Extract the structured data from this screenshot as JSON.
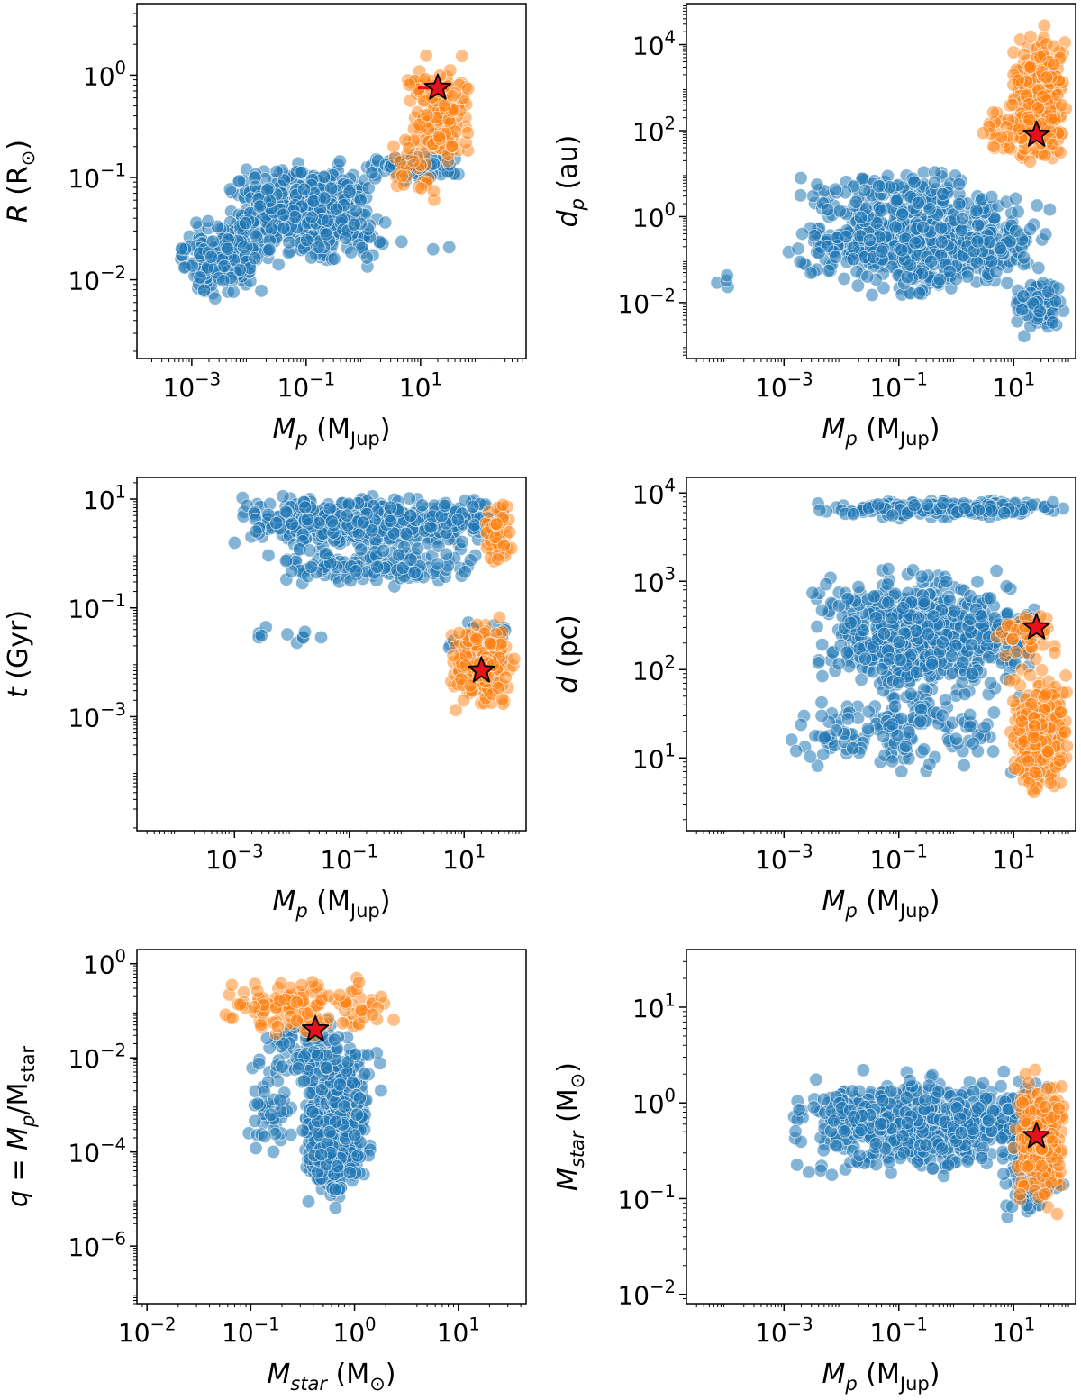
{
  "chart_data": [
    {
      "type": "scatter",
      "id": "p1",
      "xlabel": [
        "M",
        "p",
        " (M",
        "Jup",
        ")"
      ],
      "ylabel": [
        "R",
        "",
        " (R",
        "⊙",
        ")"
      ],
      "xscale": "log",
      "yscale": "log",
      "xlim": [
        0.00011,
        700
      ],
      "ylim": [
        0.0017,
        5
      ],
      "xticks": [
        {
          "v": 0.001,
          "label": "10^-3"
        },
        {
          "v": 0.1,
          "label": "10^-1"
        },
        {
          "v": 10,
          "label": "10^1"
        }
      ],
      "yticks": [
        {
          "v": 0.01,
          "label": "10^-2"
        },
        {
          "v": 0.1,
          "label": "10^-1"
        },
        {
          "v": 1,
          "label": "10^0"
        }
      ],
      "colors": {
        "blue": "#1f77b4",
        "orange": "#ff7f0e",
        "star": "#e8101a"
      },
      "blue_clusters": [
        {
          "x": [
            0.003,
            2
          ],
          "y": [
            0.012,
            0.18
          ],
          "n": 520
        },
        {
          "x": [
            0.0005,
            0.02
          ],
          "y": [
            0.005,
            0.05
          ],
          "n": 180
        },
        {
          "x": [
            1,
            60
          ],
          "y": [
            0.08,
            0.2
          ],
          "n": 90
        },
        {
          "x": [
            0.05,
            50
          ],
          "y": [
            0.01,
            0.05
          ],
          "n": 25
        }
      ],
      "orange_clusters": [
        {
          "x": [
            5,
            80
          ],
          "y": [
            0.08,
            2
          ],
          "n": 160
        },
        {
          "x": [
            2,
            20
          ],
          "y": [
            0.05,
            0.3
          ],
          "n": 25
        }
      ],
      "star": {
        "x": 20,
        "y": 0.75
      }
    },
    {
      "type": "scatter",
      "id": "p2",
      "xlabel": [
        "M",
        "p",
        " (M",
        "Jup",
        ")"
      ],
      "ylabel": [
        "d",
        "p",
        " (au)",
        "",
        ""
      ],
      "xscale": "log",
      "yscale": "log",
      "xlim": [
        2e-05,
        120
      ],
      "ylim": [
        0.0005,
        90000
      ],
      "xticks": [
        {
          "v": 0.001,
          "label": "10^-3"
        },
        {
          "v": 0.1,
          "label": "10^-1"
        },
        {
          "v": 10,
          "label": "10^1"
        }
      ],
      "yticks": [
        {
          "v": 0.01,
          "label": "10^-2"
        },
        {
          "v": 1,
          "label": "10^0"
        },
        {
          "v": 100,
          "label": "10^2"
        },
        {
          "v": 10000,
          "label": "10^4"
        }
      ],
      "colors": {
        "blue": "#1f77b4",
        "orange": "#ff7f0e",
        "star": "#e8101a"
      },
      "blue_clusters": [
        {
          "x": [
            0.001,
            50
          ],
          "y": [
            0.01,
            5
          ],
          "n": 650
        },
        {
          "x": [
            0.001,
            30
          ],
          "y": [
            0.5,
            20
          ],
          "n": 120
        },
        {
          "x": [
            10,
            80
          ],
          "y": [
            0.001,
            0.05
          ],
          "n": 80
        },
        {
          "x": [
            5e-05,
            0.0002
          ],
          "y": [
            0.01,
            0.2
          ],
          "n": 4
        }
      ],
      "orange_clusters": [
        {
          "x": [
            8,
            90
          ],
          "y": [
            5,
            40000
          ],
          "n": 280
        },
        {
          "x": [
            2,
            20
          ],
          "y": [
            20,
            500
          ],
          "n": 25
        }
      ],
      "star": {
        "x": 25,
        "y": 80
      }
    },
    {
      "type": "scatter",
      "id": "p3",
      "xlabel": [
        "M",
        "p",
        " (M",
        "Jup",
        ")"
      ],
      "ylabel": [
        "t",
        "",
        " (Gyr)",
        "",
        ""
      ],
      "xscale": "log",
      "yscale": "log",
      "xlim": [
        2e-05,
        120
      ],
      "ylim": [
        8e-06,
        25
      ],
      "xticks": [
        {
          "v": 0.001,
          "label": "10^-3"
        },
        {
          "v": 0.1,
          "label": "10^-1"
        },
        {
          "v": 10,
          "label": "10^1"
        }
      ],
      "yticks": [
        {
          "v": 0.001,
          "label": "10^-3"
        },
        {
          "v": 0.1,
          "label": "10^-1"
        },
        {
          "v": 10,
          "label": "10^1"
        }
      ],
      "colors": {
        "blue": "#1f77b4",
        "orange": "#ff7f0e",
        "star": "#e8101a"
      },
      "blue_clusters": [
        {
          "x": [
            0.0008,
            60
          ],
          "y": [
            1,
            14
          ],
          "n": 600
        },
        {
          "x": [
            0.003,
            30
          ],
          "y": [
            0.2,
            2
          ],
          "n": 150
        },
        {
          "x": [
            5,
            70
          ],
          "y": [
            0.001,
            0.2
          ],
          "n": 40
        },
        {
          "x": [
            0.001,
            0.05
          ],
          "y": [
            0.02,
            0.05
          ],
          "n": 10
        }
      ],
      "orange_clusters": [
        {
          "x": [
            5,
            80
          ],
          "y": [
            0.0008,
            0.1
          ],
          "n": 180
        },
        {
          "x": [
            20,
            80
          ],
          "y": [
            0.3,
            14
          ],
          "n": 50
        }
      ],
      "star": {
        "x": 20,
        "y": 0.007
      }
    },
    {
      "type": "scatter",
      "id": "p4",
      "xlabel": [
        "M",
        "p",
        " (M",
        "Jup",
        ")"
      ],
      "ylabel": [
        "d",
        "",
        " (pc)",
        "",
        ""
      ],
      "xscale": "log",
      "yscale": "log",
      "xlim": [
        2e-05,
        120
      ],
      "ylim": [
        1.5,
        15000
      ],
      "xticks": [
        {
          "v": 0.001,
          "label": "10^-3"
        },
        {
          "v": 0.1,
          "label": "10^-1"
        },
        {
          "v": 10,
          "label": "10^1"
        }
      ],
      "yticks": [
        {
          "v": 10,
          "label": "10^1"
        },
        {
          "v": 100,
          "label": "10^2"
        },
        {
          "v": 1000,
          "label": "10^3"
        },
        {
          "v": 10000,
          "label": "10^4"
        }
      ],
      "colors": {
        "blue": "#1f77b4",
        "orange": "#ff7f0e",
        "star": "#e8101a"
      },
      "blue_clusters": [
        {
          "x": [
            0.003,
            80
          ],
          "y": [
            5000,
            9000
          ],
          "n": 220
        },
        {
          "x": [
            0.002,
            30
          ],
          "y": [
            30,
            2000
          ],
          "n": 650
        },
        {
          "x": [
            0.001,
            10
          ],
          "y": [
            5,
            80
          ],
          "n": 150
        }
      ],
      "orange_clusters": [
        {
          "x": [
            8,
            90
          ],
          "y": [
            3,
            120
          ],
          "n": 320
        },
        {
          "x": [
            5,
            60
          ],
          "y": [
            100,
            600
          ],
          "n": 40
        }
      ],
      "star": {
        "x": 25,
        "y": 300
      }
    },
    {
      "type": "scatter",
      "id": "p5",
      "xlabel": [
        "M",
        "star",
        " (M",
        "⊙",
        ")"
      ],
      "ylabel": [
        "q = M",
        "p",
        "/M",
        "star",
        ""
      ],
      "xscale": "log",
      "yscale": "log",
      "xlim": [
        0.008,
        45
      ],
      "ylim": [
        6e-08,
        2
      ],
      "xticks": [
        {
          "v": 0.01,
          "label": "10^-2"
        },
        {
          "v": 0.1,
          "label": "10^-1"
        },
        {
          "v": 1,
          "label": "10^0"
        },
        {
          "v": 10,
          "label": "10^1"
        }
      ],
      "yticks": [
        {
          "v": 1e-06,
          "label": "10^-6"
        },
        {
          "v": 0.0001,
          "label": "10^-4"
        },
        {
          "v": 0.01,
          "label": "10^-2"
        },
        {
          "v": 1,
          "label": "10^0"
        }
      ],
      "colors": {
        "blue": "#1f77b4",
        "orange": "#ff7f0e",
        "star": "#e8101a"
      },
      "blue_clusters": [
        {
          "x": [
            0.3,
            1.5
          ],
          "y": [
            5e-06,
            0.02
          ],
          "n": 650
        },
        {
          "x": [
            0.1,
            2
          ],
          "y": [
            0.001,
            0.1
          ],
          "n": 120
        },
        {
          "x": [
            0.08,
            0.3
          ],
          "y": [
            5e-05,
            0.01
          ],
          "n": 40
        }
      ],
      "orange_clusters": [
        {
          "x": [
            0.04,
            2.5
          ],
          "y": [
            0.02,
            0.9
          ],
          "n": 140
        }
      ],
      "star": {
        "x": 0.42,
        "y": 0.04
      }
    },
    {
      "type": "scatter",
      "id": "p6",
      "xlabel": [
        "M",
        "p",
        " (M",
        "Jup",
        ")"
      ],
      "ylabel": [
        "M",
        "star",
        " (M",
        "⊙",
        ")"
      ],
      "xscale": "log",
      "yscale": "log",
      "xlim": [
        2e-05,
        120
      ],
      "ylim": [
        0.008,
        40
      ],
      "xticks": [
        {
          "v": 0.001,
          "label": "10^-3"
        },
        {
          "v": 0.1,
          "label": "10^-1"
        },
        {
          "v": 10,
          "label": "10^1"
        }
      ],
      "yticks": [
        {
          "v": 0.01,
          "label": "10^-2"
        },
        {
          "v": 0.1,
          "label": "10^-1"
        },
        {
          "v": 1,
          "label": "10^0"
        },
        {
          "v": 10,
          "label": "10^1"
        }
      ],
      "colors": {
        "blue": "#1f77b4",
        "orange": "#ff7f0e",
        "star": "#e8101a"
      },
      "blue_clusters": [
        {
          "x": [
            0.001,
            60
          ],
          "y": [
            0.15,
            2.5
          ],
          "n": 700
        },
        {
          "x": [
            5,
            80
          ],
          "y": [
            0.05,
            0.5
          ],
          "n": 60
        }
      ],
      "orange_clusters": [
        {
          "x": [
            10,
            80
          ],
          "y": [
            0.05,
            3
          ],
          "n": 250
        }
      ],
      "star": {
        "x": 25,
        "y": 0.45
      }
    }
  ]
}
